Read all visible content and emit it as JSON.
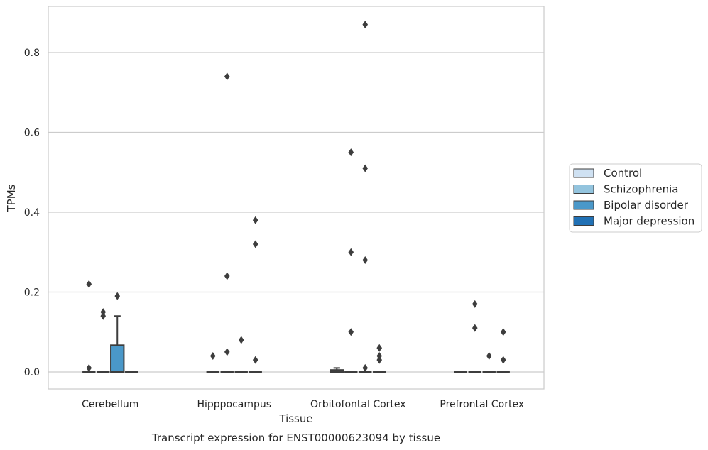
{
  "chart_data": {
    "type": "box",
    "title": "Transcript expression for ENST00000623094 by tissue",
    "xlabel": "Tissue",
    "ylabel": "TPMs",
    "categories": [
      "Cerebellum",
      "Hipppocampus",
      "Orbitofontal Cortex",
      "Prefrontal Cortex"
    ],
    "ylim": [
      -0.043,
      0.915
    ],
    "yticks": [
      0.0,
      0.2,
      0.4,
      0.6,
      0.8
    ],
    "ytick_labels": [
      "0.0",
      "0.2",
      "0.4",
      "0.6",
      "0.8"
    ],
    "grid": true,
    "legend_position": "right",
    "series": [
      {
        "name": "Control",
        "color": "#cfe1f2",
        "boxes": [
          {
            "category": "Cerebellum",
            "q1": 0,
            "median": 0,
            "q3": 0,
            "whisker_low": 0,
            "whisker_high": 0,
            "outliers": [
              0.22,
              0.01
            ]
          },
          {
            "category": "Hipppocampus",
            "q1": 0,
            "median": 0,
            "q3": 0,
            "whisker_low": 0,
            "whisker_high": 0,
            "outliers": [
              0.04
            ]
          },
          {
            "category": "Orbitofontal Cortex",
            "q1": 0,
            "median": 0,
            "q3": 0.005,
            "whisker_low": 0,
            "whisker_high": 0.01,
            "outliers": []
          },
          {
            "category": "Prefrontal Cortex",
            "q1": 0,
            "median": 0,
            "q3": 0,
            "whisker_low": 0,
            "whisker_high": 0,
            "outliers": []
          }
        ]
      },
      {
        "name": "Schizophrenia",
        "color": "#93c4de",
        "boxes": [
          {
            "category": "Cerebellum",
            "q1": 0,
            "median": 0,
            "q3": 0,
            "whisker_low": 0,
            "whisker_high": 0,
            "outliers": [
              0.15,
              0.14
            ]
          },
          {
            "category": "Hipppocampus",
            "q1": 0,
            "median": 0,
            "q3": 0,
            "whisker_low": 0,
            "whisker_high": 0,
            "outliers": [
              0.74,
              0.24,
              0.05
            ]
          },
          {
            "category": "Orbitofontal Cortex",
            "q1": 0,
            "median": 0,
            "q3": 0,
            "whisker_low": 0,
            "whisker_high": 0,
            "outliers": [
              0.55,
              0.3,
              0.1
            ]
          },
          {
            "category": "Prefrontal Cortex",
            "q1": 0,
            "median": 0,
            "q3": 0,
            "whisker_low": 0,
            "whisker_high": 0,
            "outliers": [
              0.17,
              0.11
            ]
          }
        ]
      },
      {
        "name": "Bipolar disorder",
        "color": "#4a98c9",
        "boxes": [
          {
            "category": "Cerebellum",
            "q1": 0,
            "median": 0,
            "q3": 0.067,
            "whisker_low": 0,
            "whisker_high": 0.14,
            "outliers": [
              0.19
            ]
          },
          {
            "category": "Hipppocampus",
            "q1": 0,
            "median": 0,
            "q3": 0,
            "whisker_low": 0,
            "whisker_high": 0,
            "outliers": [
              0.08
            ]
          },
          {
            "category": "Orbitofontal Cortex",
            "q1": 0,
            "median": 0,
            "q3": 0,
            "whisker_low": 0,
            "whisker_high": 0,
            "outliers": [
              0.87,
              0.51,
              0.28,
              0.01
            ]
          },
          {
            "category": "Prefrontal Cortex",
            "q1": 0,
            "median": 0,
            "q3": 0,
            "whisker_low": 0,
            "whisker_high": 0,
            "outliers": [
              0.04
            ]
          }
        ]
      },
      {
        "name": "Major depression",
        "color": "#2171b5",
        "boxes": [
          {
            "category": "Cerebellum",
            "q1": 0,
            "median": 0,
            "q3": 0,
            "whisker_low": 0,
            "whisker_high": 0,
            "outliers": []
          },
          {
            "category": "Hipppocampus",
            "q1": 0,
            "median": 0,
            "q3": 0,
            "whisker_low": 0,
            "whisker_high": 0,
            "outliers": [
              0.38,
              0.32,
              0.03
            ]
          },
          {
            "category": "Orbitofontal Cortex",
            "q1": 0,
            "median": 0,
            "q3": 0,
            "whisker_low": 0,
            "whisker_high": 0,
            "outliers": [
              0.06,
              0.04,
              0.03
            ]
          },
          {
            "category": "Prefrontal Cortex",
            "q1": 0,
            "median": 0,
            "q3": 0,
            "whisker_low": 0,
            "whisker_high": 0,
            "outliers": [
              0.03,
              0.1
            ]
          }
        ]
      }
    ]
  }
}
